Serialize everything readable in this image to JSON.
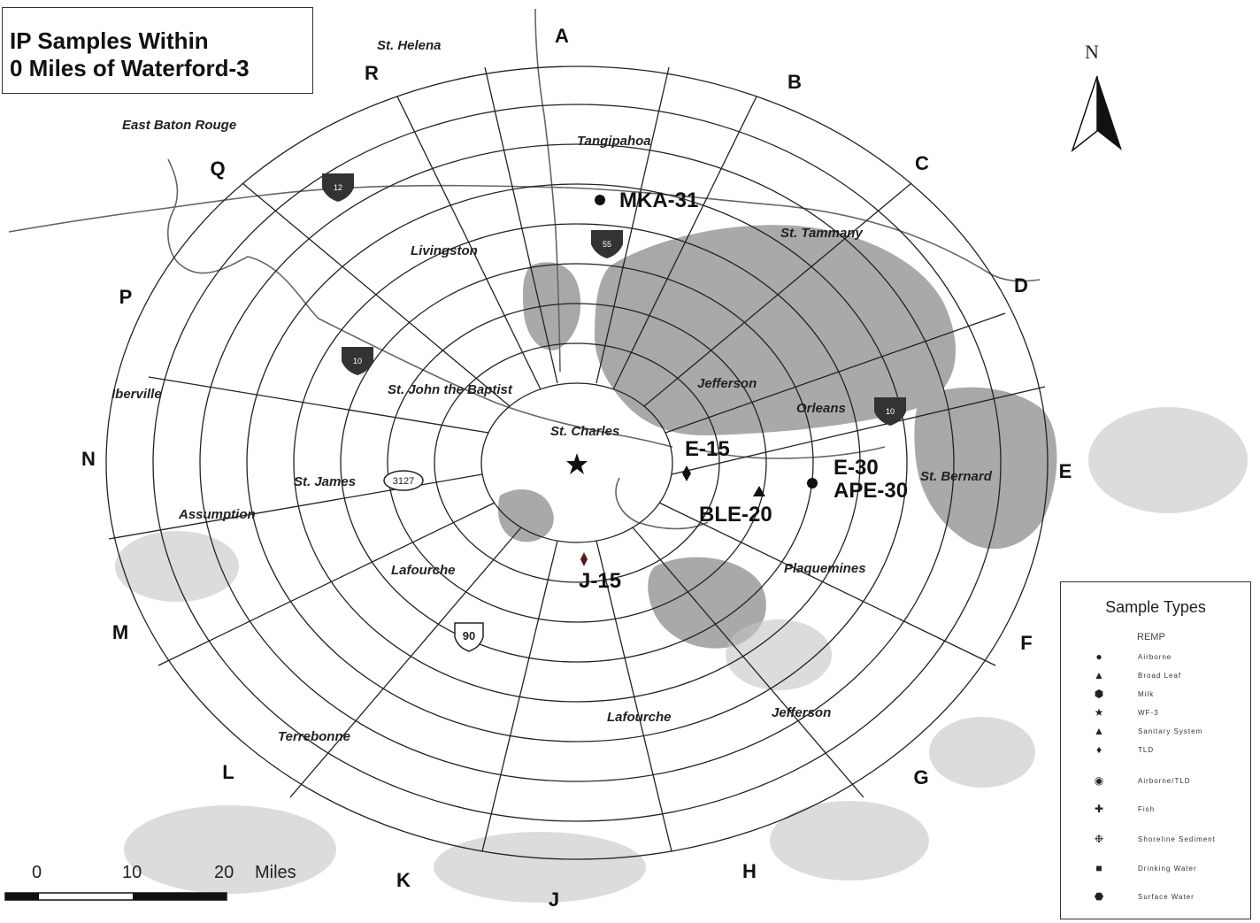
{
  "title": {
    "line1": "IP Samples Within",
    "line2": "0 Miles of Waterford-3"
  },
  "north_label": "N",
  "sectors": [
    "A",
    "B",
    "C",
    "D",
    "E",
    "F",
    "G",
    "H",
    "J",
    "K",
    "L",
    "M",
    "N",
    "P",
    "Q",
    "R"
  ],
  "parishes": [
    "St. Helena",
    "East Baton Rouge",
    "Tangipahoa",
    "Livingston",
    "St. Tammany",
    "St. John the Baptist",
    "Jefferson",
    "Orleans",
    "Iberville",
    "St. Charles",
    "St. James",
    "St. Bernard",
    "Assumption",
    "Lafourche",
    "Plaquemines",
    "Lafourche",
    "Jefferson",
    "Terrebonne"
  ],
  "highways": [
    "12",
    "55",
    "10",
    "10",
    "3127",
    "90"
  ],
  "samples": [
    "MKA-31",
    "E-15",
    "E-30",
    "APE-30",
    "BLE-20",
    "J-15"
  ],
  "legend": {
    "title": "Sample Types",
    "subtitle": "REMP",
    "items": [
      {
        "symbol": "●",
        "label": "Airborne"
      },
      {
        "symbol": "▲",
        "label": "Broad Leaf"
      },
      {
        "symbol": "⬢",
        "label": "Milk"
      },
      {
        "symbol": "★",
        "label": "WF-3"
      },
      {
        "symbol": "▲",
        "label": "Sanitary System"
      },
      {
        "symbol": "♦",
        "label": "TLD"
      },
      {
        "symbol": "◉",
        "label": "Airborne/TLD"
      },
      {
        "symbol": "✚",
        "label": "Fish"
      },
      {
        "symbol": "❉",
        "label": "Shoreline Sediment"
      },
      {
        "symbol": "■",
        "label": "Drinking Water"
      },
      {
        "symbol": "⬣",
        "label": "Surface Water"
      }
    ]
  },
  "scale": {
    "ticks": [
      "0",
      "10",
      "20"
    ],
    "unit": "Miles"
  }
}
